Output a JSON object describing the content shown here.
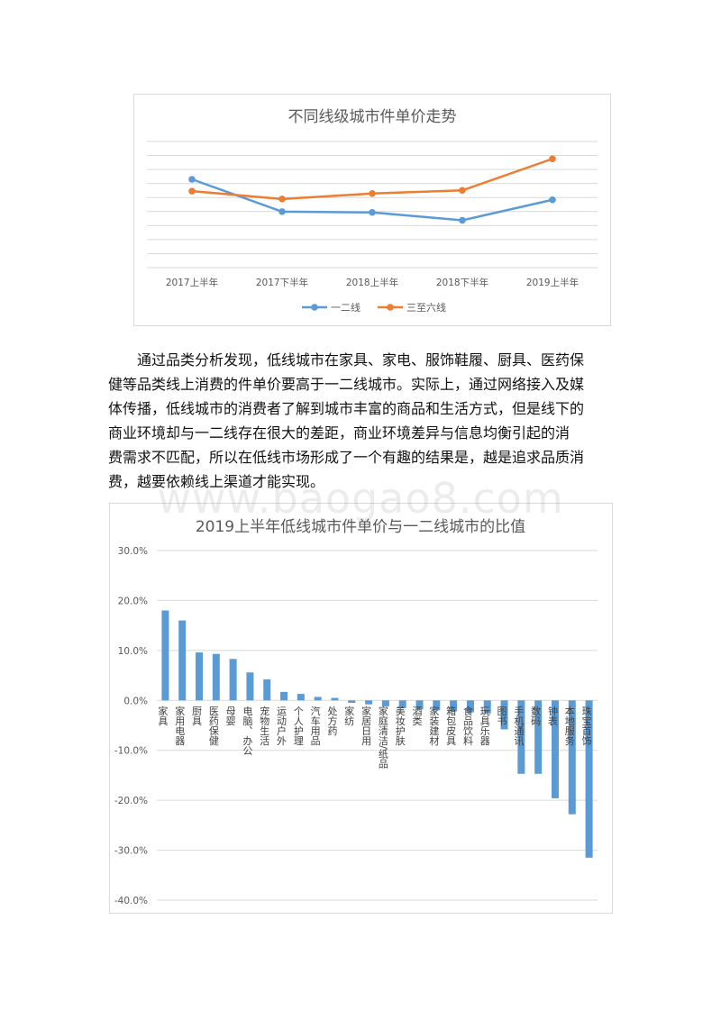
{
  "chart_data": [
    {
      "type": "line",
      "title": "不同线级城市件单价走势",
      "categories": [
        "2017上半年",
        "2017下半年",
        "2018上半年",
        "2018下半年",
        "2019上半年"
      ],
      "series": [
        {
          "name": "一二线",
          "color": "#5b9bd5",
          "values": [
            1.06,
            0.855,
            0.85,
            0.8,
            0.93
          ]
        },
        {
          "name": "三至六线",
          "color": "#ed7d31",
          "values": [
            0.985,
            0.935,
            0.97,
            0.99,
            1.19
          ]
        }
      ],
      "ylim": [
        0.5,
        1.3
      ],
      "grid": true,
      "legend": "bottom"
    },
    {
      "type": "bar",
      "title": "2019上半年低线城市件单价与一二线城市的比值",
      "categories": [
        "家具",
        "家用电器",
        "厨具",
        "医药保健",
        "母婴",
        "电脑、办公",
        "宠物生活",
        "运动户外",
        "个人护理",
        "汽车用品",
        "处方药",
        "家纺",
        "家居日用",
        "家庭清洁/纸品",
        "美妆护肤",
        "酒类",
        "家装建材",
        "箱包皮具",
        "食品饮料",
        "玩具乐器",
        "图书",
        "手机通讯",
        "数码",
        "钟表",
        "本地服务",
        "珠宝首饰"
      ],
      "values": [
        18.0,
        16.0,
        9.6,
        9.3,
        8.3,
        5.6,
        4.2,
        1.7,
        1.3,
        0.7,
        0.5,
        -0.5,
        -0.8,
        -1.2,
        -1.5,
        -1.8,
        -2.0,
        -2.2,
        -2.4,
        -2.6,
        -5.8,
        -14.7,
        -14.7,
        -19.6,
        -22.8,
        -31.5
      ],
      "color": "#5b9bd5",
      "ylim": [
        -40,
        30
      ],
      "yticks": [
        "30.0%",
        "20.0%",
        "10.0%",
        "0.0%",
        "-10.0%",
        "-20.0%",
        "-30.0%",
        "-40.0%"
      ],
      "grid": true
    }
  ],
  "paragraph": {
    "lines": [
      "通过品类分析发现，低线城市在家具、家电、服饰鞋履、厨具、医药保",
      "健等品类线上消费的件单价要高于一二线城市。实际上，通过网络接入及媒",
      "体传播，低线城市的消费者了解到城市丰富的商品和生活方式，但是线下的",
      "商业环境却与一二线存在很大的差距，商业环境差异与信息均衡引起的消",
      "费需求不匹配，所以在低线市场形成了一个有趣的结果是，越是追求品质消",
      "费，越要依赖线上渠道才能实现。"
    ]
  },
  "watermark": "www.baogao8.com"
}
